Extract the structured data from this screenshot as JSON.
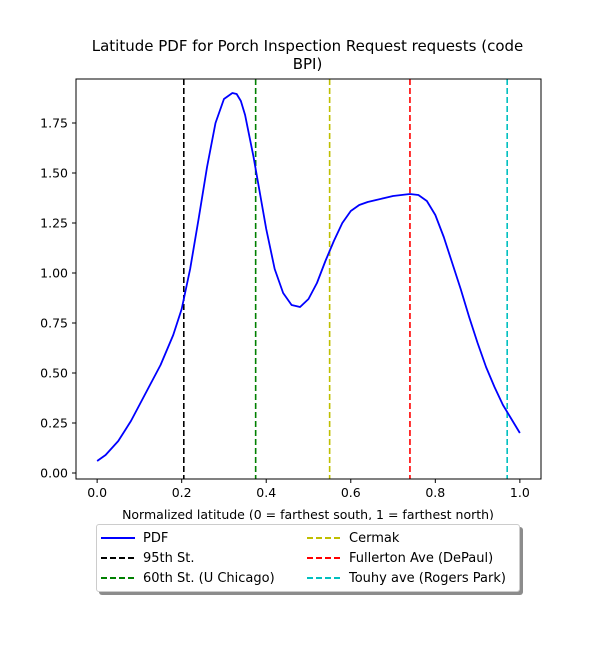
{
  "chart_data": {
    "type": "line",
    "title": "Latitude PDF for Porch Inspection Request  requests (code BPI)",
    "title_lines": [
      "Latitude PDF for Porch Inspection Request  requests (code",
      "BPI)"
    ],
    "xlabel": "Normalized latitude (0 = farthest south, 1 = farthest north)",
    "ylabel": "",
    "xlim": [
      -0.05,
      1.05
    ],
    "ylim": [
      -0.03,
      1.97
    ],
    "xticks": [
      0.0,
      0.2,
      0.4,
      0.6,
      0.8,
      1.0
    ],
    "xtick_labels": [
      "0.0",
      "0.2",
      "0.4",
      "0.6",
      "0.8",
      "1.0"
    ],
    "yticks": [
      0.0,
      0.25,
      0.5,
      0.75,
      1.0,
      1.25,
      1.5,
      1.75
    ],
    "ytick_labels": [
      "0.00",
      "0.25",
      "0.50",
      "0.75",
      "1.00",
      "1.25",
      "1.50",
      "1.75"
    ],
    "grid": false,
    "legend_position": "below",
    "series": [
      {
        "name": "PDF",
        "color": "#0000ff",
        "style": "solid",
        "x": [
          0.0,
          0.02,
          0.05,
          0.08,
          0.1,
          0.13,
          0.15,
          0.18,
          0.2,
          0.22,
          0.24,
          0.26,
          0.28,
          0.3,
          0.32,
          0.33,
          0.34,
          0.35,
          0.37,
          0.38,
          0.4,
          0.42,
          0.44,
          0.46,
          0.48,
          0.5,
          0.52,
          0.54,
          0.56,
          0.58,
          0.6,
          0.62,
          0.64,
          0.66,
          0.68,
          0.7,
          0.72,
          0.74,
          0.76,
          0.78,
          0.8,
          0.82,
          0.84,
          0.86,
          0.88,
          0.9,
          0.92,
          0.94,
          0.96,
          0.98,
          1.0
        ],
        "y": [
          0.06,
          0.09,
          0.16,
          0.26,
          0.34,
          0.46,
          0.54,
          0.69,
          0.82,
          1.02,
          1.27,
          1.53,
          1.75,
          1.87,
          1.9,
          1.895,
          1.86,
          1.79,
          1.58,
          1.46,
          1.22,
          1.02,
          0.9,
          0.84,
          0.83,
          0.87,
          0.95,
          1.06,
          1.16,
          1.25,
          1.31,
          1.34,
          1.355,
          1.365,
          1.375,
          1.385,
          1.39,
          1.395,
          1.39,
          1.36,
          1.29,
          1.18,
          1.05,
          0.92,
          0.78,
          0.65,
          0.53,
          0.43,
          0.34,
          0.27,
          0.2
        ]
      },
      {
        "name": "95th St.",
        "color": "#000000",
        "style": "dashed",
        "vline": 0.205
      },
      {
        "name": "60th St. (U Chicago)",
        "color": "#008000",
        "style": "dashed",
        "vline": 0.375
      },
      {
        "name": "Cermak",
        "color": "#bfbf00",
        "style": "dashed",
        "vline": 0.55
      },
      {
        "name": "Fullerton Ave (DePaul)",
        "color": "#ff0000",
        "style": "dashed",
        "vline": 0.74
      },
      {
        "name": "Touhy ave (Rogers Park)",
        "color": "#00bfbf",
        "style": "dashed",
        "vline": 0.97
      }
    ]
  }
}
